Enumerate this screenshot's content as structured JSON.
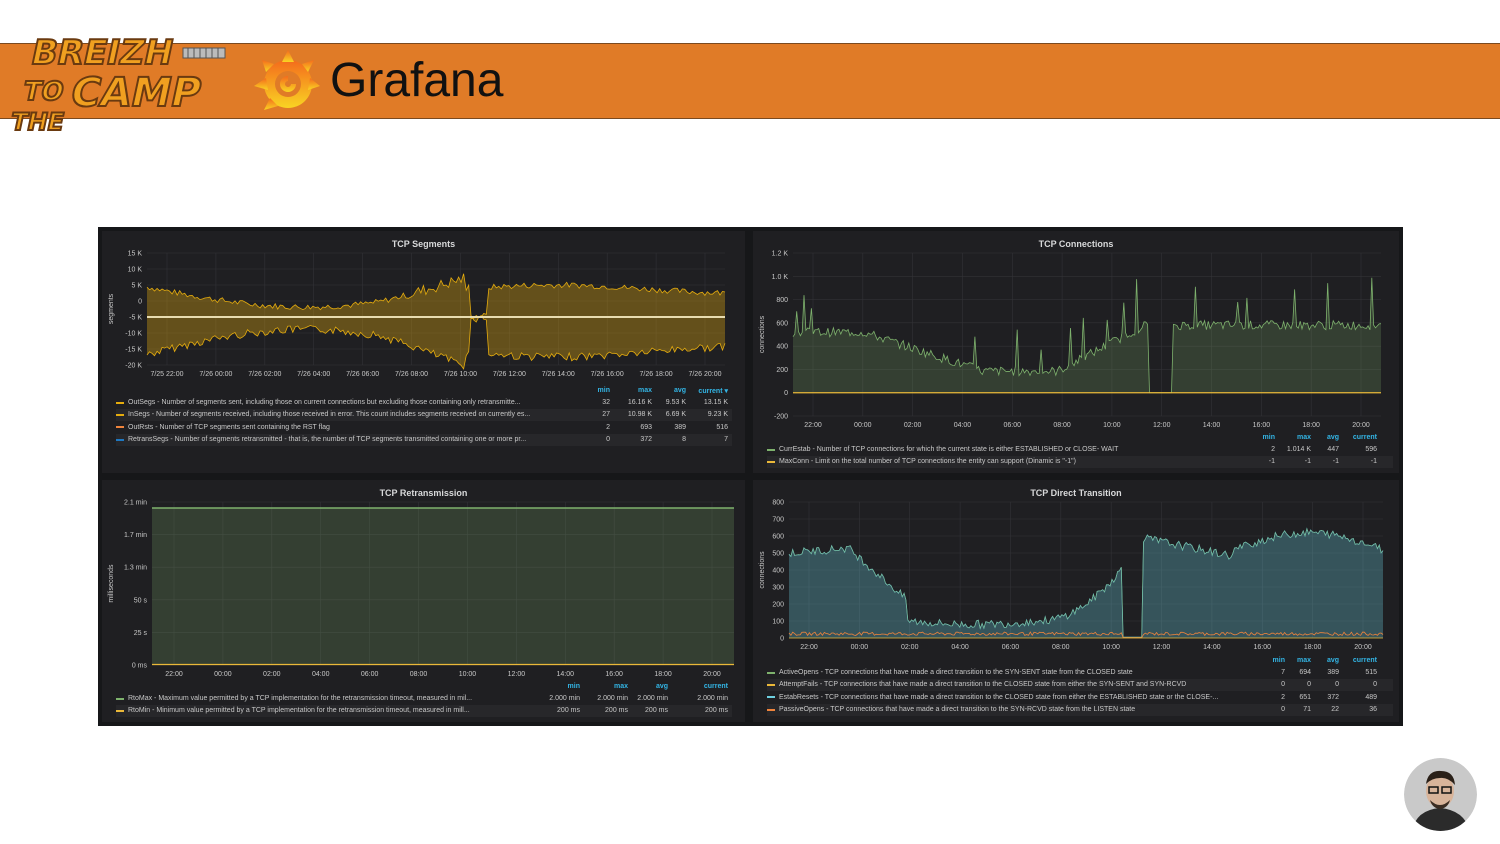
{
  "slide": {
    "title": "Grafana",
    "logo_text": "BREIZH TO THE CAMP",
    "colors": {
      "banner": "#e07b27",
      "dashboard_bg": "#161719",
      "panel_bg": "#1f1f22"
    }
  },
  "icons": {
    "logo": "breizhcamp-logo-icon",
    "grafana": "grafana-logo-icon",
    "avatar": "speaker-avatar"
  },
  "panels": {
    "tcp_segments": {
      "title": "TCP Segments",
      "ylabel": "segments",
      "yticks": [
        "15 K",
        "10 K",
        "5 K",
        "0",
        "-5 K",
        "-10 K",
        "-15 K",
        "-20 K"
      ],
      "xticks": [
        "7/25 22:00",
        "7/26 00:00",
        "7/26 02:00",
        "7/26 04:00",
        "7/26 06:00",
        "7/26 08:00",
        "7/26 10:00",
        "7/26 12:00",
        "7/26 14:00",
        "7/26 16:00",
        "7/26 18:00",
        "7/26 20:00"
      ],
      "headers": [
        "min",
        "max",
        "avg",
        "current ▾"
      ],
      "series": [
        {
          "label": "OutSegs - Number of segments sent, including those on current connections but excluding those containing only retransmitte...",
          "color": "#e5ac0e",
          "values": [
            "32",
            "16.16 K",
            "9.53 K",
            "13.15 K"
          ]
        },
        {
          "label": "InSegs - Number of segments received, including those received in error. This count includes segments received on currently es...",
          "color": "#e5ac0e",
          "values": [
            "27",
            "10.98 K",
            "6.69 K",
            "9.23 K"
          ]
        },
        {
          "label": "OutRsts - Number of TCP segments sent containing the RST flag",
          "color": "#ef843c",
          "values": [
            "2",
            "693",
            "389",
            "516"
          ]
        },
        {
          "label": "RetransSegs - Number of segments retransmitted - that is, the number of TCP segments transmitted containing one or more pr...",
          "color": "#1f78c1",
          "values": [
            "0",
            "372",
            "8",
            "7"
          ]
        }
      ]
    },
    "tcp_connections": {
      "title": "TCP Connections",
      "ylabel": "connections",
      "yticks": [
        "1.2 K",
        "1.0 K",
        "800",
        "600",
        "400",
        "200",
        "0",
        "-200"
      ],
      "xticks": [
        "22:00",
        "00:00",
        "02:00",
        "04:00",
        "06:00",
        "08:00",
        "10:00",
        "12:00",
        "14:00",
        "16:00",
        "18:00",
        "20:00"
      ],
      "headers": [
        "min",
        "max",
        "avg",
        "current"
      ],
      "series": [
        {
          "label": "CurrEstab - Number of TCP connections for which the current state is either ESTABLISHED or CLOSE- WAIT",
          "color": "#7eb26d",
          "values": [
            "2",
            "1.014 K",
            "447",
            "596"
          ]
        },
        {
          "label": "MaxConn - Limit on the total number of TCP connections the entity can support (Dinamic is \"-1\")",
          "color": "#eab839",
          "values": [
            "-1",
            "-1",
            "-1",
            "-1"
          ]
        }
      ]
    },
    "tcp_retransmission": {
      "title": "TCP Retransmission",
      "ylabel": "milliseconds",
      "yticks": [
        "2.1 min",
        "1.7 min",
        "1.3 min",
        "50 s",
        "25 s",
        "0 ms"
      ],
      "xticks": [
        "22:00",
        "00:00",
        "02:00",
        "04:00",
        "06:00",
        "08:00",
        "10:00",
        "12:00",
        "14:00",
        "16:00",
        "18:00",
        "20:00"
      ],
      "headers": [
        "min",
        "max",
        "avg",
        "current"
      ],
      "series": [
        {
          "label": "RtoMax - Maximum value permitted by a TCP implementation for the retransmission timeout, measured in mil...",
          "color": "#7eb26d",
          "values": [
            "2.000 min",
            "2.000 min",
            "2.000 min",
            "2.000 min"
          ]
        },
        {
          "label": "RtoMin - Minimum value permitted by a TCP implementation for the retransmission timeout, measured in mill...",
          "color": "#eab839",
          "values": [
            "200 ms",
            "200 ms",
            "200 ms",
            "200 ms"
          ]
        }
      ]
    },
    "tcp_direct_transition": {
      "title": "TCP Direct Transition",
      "ylabel": "connections",
      "yticks": [
        "800",
        "700",
        "600",
        "500",
        "400",
        "300",
        "200",
        "100",
        "0"
      ],
      "xticks": [
        "22:00",
        "00:00",
        "02:00",
        "04:00",
        "06:00",
        "08:00",
        "10:00",
        "12:00",
        "14:00",
        "16:00",
        "18:00",
        "20:00"
      ],
      "headers": [
        "min",
        "max",
        "avg",
        "current"
      ],
      "series": [
        {
          "label": "ActiveOpens - TCP connections that have made a direct transition to the SYN-SENT state from the CLOSED state",
          "color": "#7eb26d",
          "values": [
            "7",
            "694",
            "389",
            "515"
          ]
        },
        {
          "label": "AttemptFails - TCP connections that have made a direct transition to the CLOSED state from either the SYN-SENT and SYN-RCVD",
          "color": "#eab839",
          "values": [
            "0",
            "0",
            "0",
            "0"
          ]
        },
        {
          "label": "EstabResets - TCP connections that have made a direct transition to the CLOSED state from either the ESTABLISHED state or the CLOSE-...",
          "color": "#6ed0e0",
          "values": [
            "2",
            "651",
            "372",
            "489"
          ]
        },
        {
          "label": "PassiveOpens - TCP connections that have made a direct transition to the SYN-RCVD state from the LISTEN state",
          "color": "#ef843c",
          "values": [
            "0",
            "71",
            "22",
            "36"
          ]
        }
      ]
    }
  }
}
